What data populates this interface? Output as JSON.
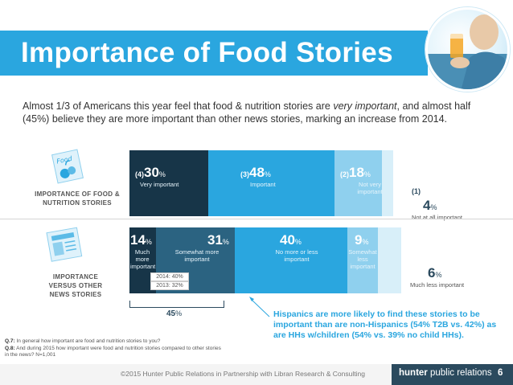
{
  "title": "Importance of Food Stories",
  "intro": {
    "part1": "Almost 1/3 of Americans this year feel that food & nutrition stories are ",
    "emph": "very important",
    "part2": ", and almost half (45%) believe they are more important than other news stories, marking an increase from 2014."
  },
  "chart_data": [
    {
      "type": "bar",
      "orientation": "horizontal-stacked",
      "row_label": "IMPORTANCE OF FOOD & NUTRITION STORIES",
      "icon_label": "Food",
      "unit": "%",
      "segments": [
        {
          "rank": "(4)",
          "value": 30,
          "label": "Very important",
          "color": "#173548"
        },
        {
          "rank": "(3)",
          "value": 48,
          "label": "Important",
          "color": "#2aa6df"
        },
        {
          "rank": "(2)",
          "value": 18,
          "label": "Not very important",
          "color": "#8fd0ee"
        },
        {
          "rank": "(1)",
          "value": 4,
          "label": "Not at all important",
          "color": "#d8eff9"
        }
      ]
    },
    {
      "type": "bar",
      "orientation": "horizontal-stacked",
      "row_label": "IMPORTANCE VERSUS OTHER NEWS STORIES",
      "unit": "%",
      "segments": [
        {
          "value": 14,
          "label": "Much more important",
          "color": "#173548"
        },
        {
          "value": 31,
          "label": "Somewhat more important",
          "color": "#2b6381"
        },
        {
          "value": 40,
          "label": "No more or less important",
          "color": "#2aa6df"
        },
        {
          "value": 9,
          "label": "Somewhat less important",
          "color": "#8fd0ee"
        },
        {
          "value": 6,
          "label": "Much less important",
          "color": "#d8eff9"
        }
      ],
      "prior_years": [
        "2014: 40%",
        "2013: 32%"
      ],
      "bracket_total": "45",
      "bracket_unit": "%"
    }
  ],
  "callout": "Hispanics are more likely to find these stories to be important than are non-Hispanics (54% T2B vs. 42%) as are HHs w/children (54% vs. 39% no child HHs).",
  "questions": {
    "q7_label": "Q.7:",
    "q7": " In general how important are food and nutrition stories to you?",
    "q8_label": "Q.8:",
    "q8": " And during 2015 how important were food and nutrition stories compared to other stories in the news? N=1,001"
  },
  "footer": {
    "credit": "©2015 Hunter Public Relations in Partnership with Libran Research & Consulting",
    "brand_bold": "hunter",
    "brand_rest": " public relations",
    "page": "6"
  },
  "colors": {
    "banner": "#2aa6df",
    "dark": "#173548",
    "mid_dark": "#2b6381",
    "blue": "#2aa6df",
    "light": "#8fd0ee",
    "pale": "#d8eff9",
    "footer_brand": "#2b4a5e"
  }
}
